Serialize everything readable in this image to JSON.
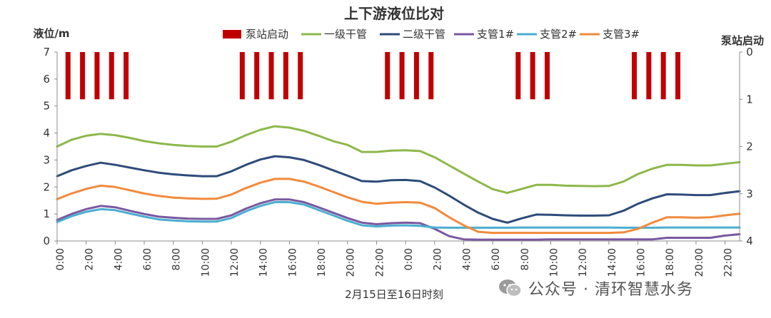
{
  "chart_data": {
    "type": "line",
    "title": "上下游液位比对",
    "ylabel": "液位/m",
    "y2label": "泵站启动",
    "xlabel": "2月15日至16日时刻",
    "ylim": [
      0,
      7
    ],
    "y2lim": [
      0,
      4
    ],
    "yticks": [
      0,
      1,
      2,
      3,
      4,
      5,
      6,
      7
    ],
    "y2ticks": [
      0,
      1,
      2,
      3,
      4
    ],
    "xticks": [
      "0:00",
      "2:00",
      "4:00",
      "6:00",
      "8:00",
      "10:00",
      "12:00",
      "14:00",
      "16:00",
      "18:00",
      "20:00",
      "22:00",
      "0:00",
      "2:00",
      "4:00",
      "6:00",
      "8:00",
      "10:00",
      "12:00",
      "14:00",
      "16:00",
      "18:00",
      "20:00",
      "22:00"
    ],
    "x_hours_start": 0,
    "x_hours_end": 47,
    "series": [
      {
        "name": "一级干管",
        "color": "#8db84a",
        "x": [
          0,
          1,
          2,
          3,
          4,
          5,
          6,
          7,
          8,
          9,
          10,
          11,
          12,
          13,
          14,
          15,
          16,
          17,
          18,
          19,
          20,
          21,
          22,
          23,
          24,
          25,
          26,
          27,
          28,
          29,
          30,
          31,
          32,
          33,
          34,
          35,
          36,
          37,
          38,
          39,
          40,
          41,
          42,
          43,
          44,
          45,
          46,
          47
        ],
        "values": [
          3.5,
          3.75,
          3.9,
          3.97,
          3.92,
          3.82,
          3.7,
          3.62,
          3.56,
          3.52,
          3.5,
          3.5,
          3.68,
          3.92,
          4.12,
          4.25,
          4.2,
          4.08,
          3.9,
          3.7,
          3.56,
          3.3,
          3.3,
          3.35,
          3.36,
          3.33,
          3.1,
          2.8,
          2.5,
          2.2,
          1.92,
          1.78,
          1.93,
          2.08,
          2.08,
          2.05,
          2.04,
          2.03,
          2.04,
          2.2,
          2.48,
          2.68,
          2.82,
          2.82,
          2.8,
          2.8,
          2.86,
          2.92
        ]
      },
      {
        "name": "二级干管",
        "color": "#2e4b7a",
        "x": [
          0,
          1,
          2,
          3,
          4,
          5,
          6,
          7,
          8,
          9,
          10,
          11,
          12,
          13,
          14,
          15,
          16,
          17,
          18,
          19,
          20,
          21,
          22,
          23,
          24,
          25,
          26,
          27,
          28,
          29,
          30,
          31,
          32,
          33,
          34,
          35,
          36,
          37,
          38,
          39,
          40,
          41,
          42,
          43,
          44,
          45,
          46,
          47
        ],
        "values": [
          2.4,
          2.62,
          2.78,
          2.9,
          2.82,
          2.72,
          2.62,
          2.53,
          2.47,
          2.43,
          2.4,
          2.4,
          2.58,
          2.82,
          3.02,
          3.14,
          3.1,
          3.0,
          2.82,
          2.62,
          2.42,
          2.22,
          2.2,
          2.25,
          2.26,
          2.22,
          1.98,
          1.68,
          1.35,
          1.05,
          0.82,
          0.68,
          0.84,
          0.98,
          0.97,
          0.95,
          0.94,
          0.94,
          0.95,
          1.12,
          1.38,
          1.58,
          1.73,
          1.72,
          1.7,
          1.7,
          1.78,
          1.84
        ]
      },
      {
        "name": "支管1#",
        "color": "#7a58a0",
        "x": [
          0,
          1,
          2,
          3,
          4,
          5,
          6,
          7,
          8,
          9,
          10,
          11,
          12,
          13,
          14,
          15,
          16,
          17,
          18,
          19,
          20,
          21,
          22,
          23,
          24,
          25,
          26,
          27,
          28,
          29,
          30,
          31,
          32,
          33,
          34,
          35,
          36,
          37,
          38,
          39,
          40,
          41,
          42,
          43,
          44,
          45,
          46,
          47
        ],
        "values": [
          0.78,
          1.0,
          1.18,
          1.3,
          1.25,
          1.12,
          1.0,
          0.9,
          0.86,
          0.83,
          0.82,
          0.82,
          0.95,
          1.2,
          1.4,
          1.54,
          1.54,
          1.44,
          1.25,
          1.05,
          0.85,
          0.68,
          0.62,
          0.66,
          0.68,
          0.66,
          0.45,
          0.18,
          0.06,
          0.05,
          0.05,
          0.05,
          0.05,
          0.05,
          0.06,
          0.06,
          0.06,
          0.06,
          0.06,
          0.06,
          0.06,
          0.06,
          0.12,
          0.12,
          0.12,
          0.12,
          0.2,
          0.25
        ]
      },
      {
        "name": "支管2#",
        "color": "#4aaed0",
        "x": [
          0,
          1,
          2,
          3,
          4,
          5,
          6,
          7,
          8,
          9,
          10,
          11,
          12,
          13,
          14,
          15,
          16,
          17,
          18,
          19,
          20,
          21,
          22,
          23,
          24,
          25,
          26,
          27,
          28,
          29,
          30,
          31,
          32,
          33,
          34,
          35,
          36,
          37,
          38,
          39,
          40,
          41,
          42,
          43,
          44,
          45,
          46,
          47
        ],
        "values": [
          0.7,
          0.92,
          1.08,
          1.18,
          1.14,
          1.02,
          0.9,
          0.8,
          0.76,
          0.73,
          0.72,
          0.72,
          0.85,
          1.1,
          1.3,
          1.44,
          1.44,
          1.35,
          1.15,
          0.95,
          0.75,
          0.58,
          0.54,
          0.57,
          0.58,
          0.56,
          0.5,
          0.49,
          0.49,
          0.49,
          0.49,
          0.49,
          0.5,
          0.5,
          0.5,
          0.5,
          0.5,
          0.5,
          0.5,
          0.49,
          0.49,
          0.49,
          0.5,
          0.5,
          0.5,
          0.5,
          0.5,
          0.5
        ]
      },
      {
        "name": "支管3#",
        "color": "#f28a3c",
        "x": [
          0,
          1,
          2,
          3,
          4,
          5,
          6,
          7,
          8,
          9,
          10,
          11,
          12,
          13,
          14,
          15,
          16,
          17,
          18,
          19,
          20,
          21,
          22,
          23,
          24,
          25,
          26,
          27,
          28,
          29,
          30,
          31,
          32,
          33,
          34,
          35,
          36,
          37,
          38,
          39,
          40,
          41,
          42,
          43,
          44,
          45,
          46,
          47
        ],
        "values": [
          1.55,
          1.76,
          1.93,
          2.05,
          2.0,
          1.88,
          1.76,
          1.67,
          1.61,
          1.58,
          1.56,
          1.57,
          1.72,
          1.96,
          2.16,
          2.3,
          2.3,
          2.2,
          2.02,
          1.82,
          1.62,
          1.45,
          1.38,
          1.42,
          1.44,
          1.42,
          1.22,
          0.88,
          0.58,
          0.34,
          0.3,
          0.3,
          0.3,
          0.3,
          0.3,
          0.3,
          0.3,
          0.3,
          0.3,
          0.32,
          0.45,
          0.68,
          0.88,
          0.88,
          0.86,
          0.88,
          0.95,
          1.01
        ]
      }
    ],
    "bar_series": {
      "name": "泵站启动",
      "color": "#c00000",
      "axis": "right",
      "value": 1,
      "x": [
        0.75,
        1.75,
        2.75,
        3.75,
        4.75,
        12.75,
        13.75,
        14.75,
        15.75,
        16.75,
        22.75,
        23.75,
        24.75,
        25.75,
        31.75,
        32.75,
        33.75,
        39.75,
        40.75,
        41.75,
        42.75
      ]
    }
  },
  "watermark": {
    "text": "公众号 · 清环智慧水务",
    "icon": "wechat-icon"
  }
}
